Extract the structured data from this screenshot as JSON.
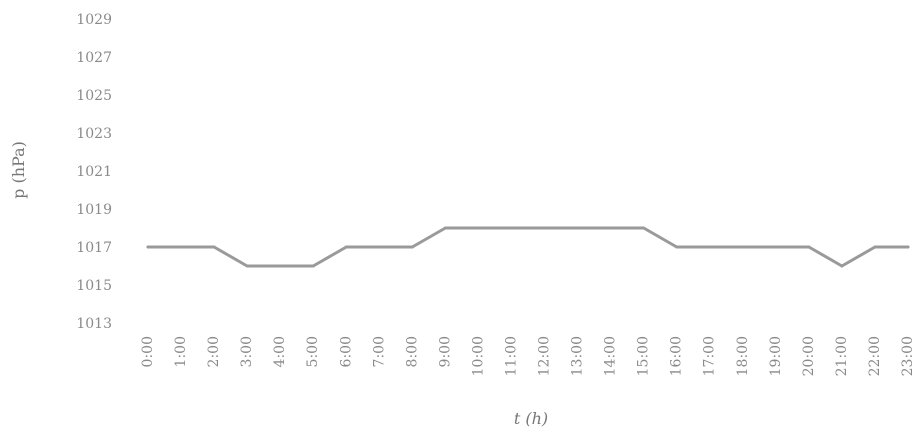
{
  "chart_data": {
    "type": "line",
    "xlabel": "t (h)",
    "ylabel": "p (hPa)",
    "ylim": [
      1013,
      1029
    ],
    "yticks": [
      1013,
      1015,
      1017,
      1019,
      1021,
      1023,
      1025,
      1027,
      1029
    ],
    "grid": false,
    "legend": "none",
    "categories": [
      "0:00",
      "1:00",
      "2:00",
      "3:00",
      "4:00",
      "5:00",
      "6:00",
      "7:00",
      "8:00",
      "9:00",
      "10:00",
      "11:00",
      "12:00",
      "13:00",
      "14:00",
      "15:00",
      "16:00",
      "17:00",
      "18:00",
      "19:00",
      "20:00",
      "21:00",
      "22:00",
      "23:00"
    ],
    "series": [
      {
        "color": "#9a9a9a",
        "values": [
          1017,
          1017,
          1017,
          1016,
          1016,
          1016,
          1017,
          1017,
          1017,
          1018,
          1018,
          1018,
          1018,
          1018,
          1018,
          1018,
          1017,
          1017,
          1017,
          1017,
          1017,
          1016,
          1017,
          1017
        ]
      }
    ]
  }
}
